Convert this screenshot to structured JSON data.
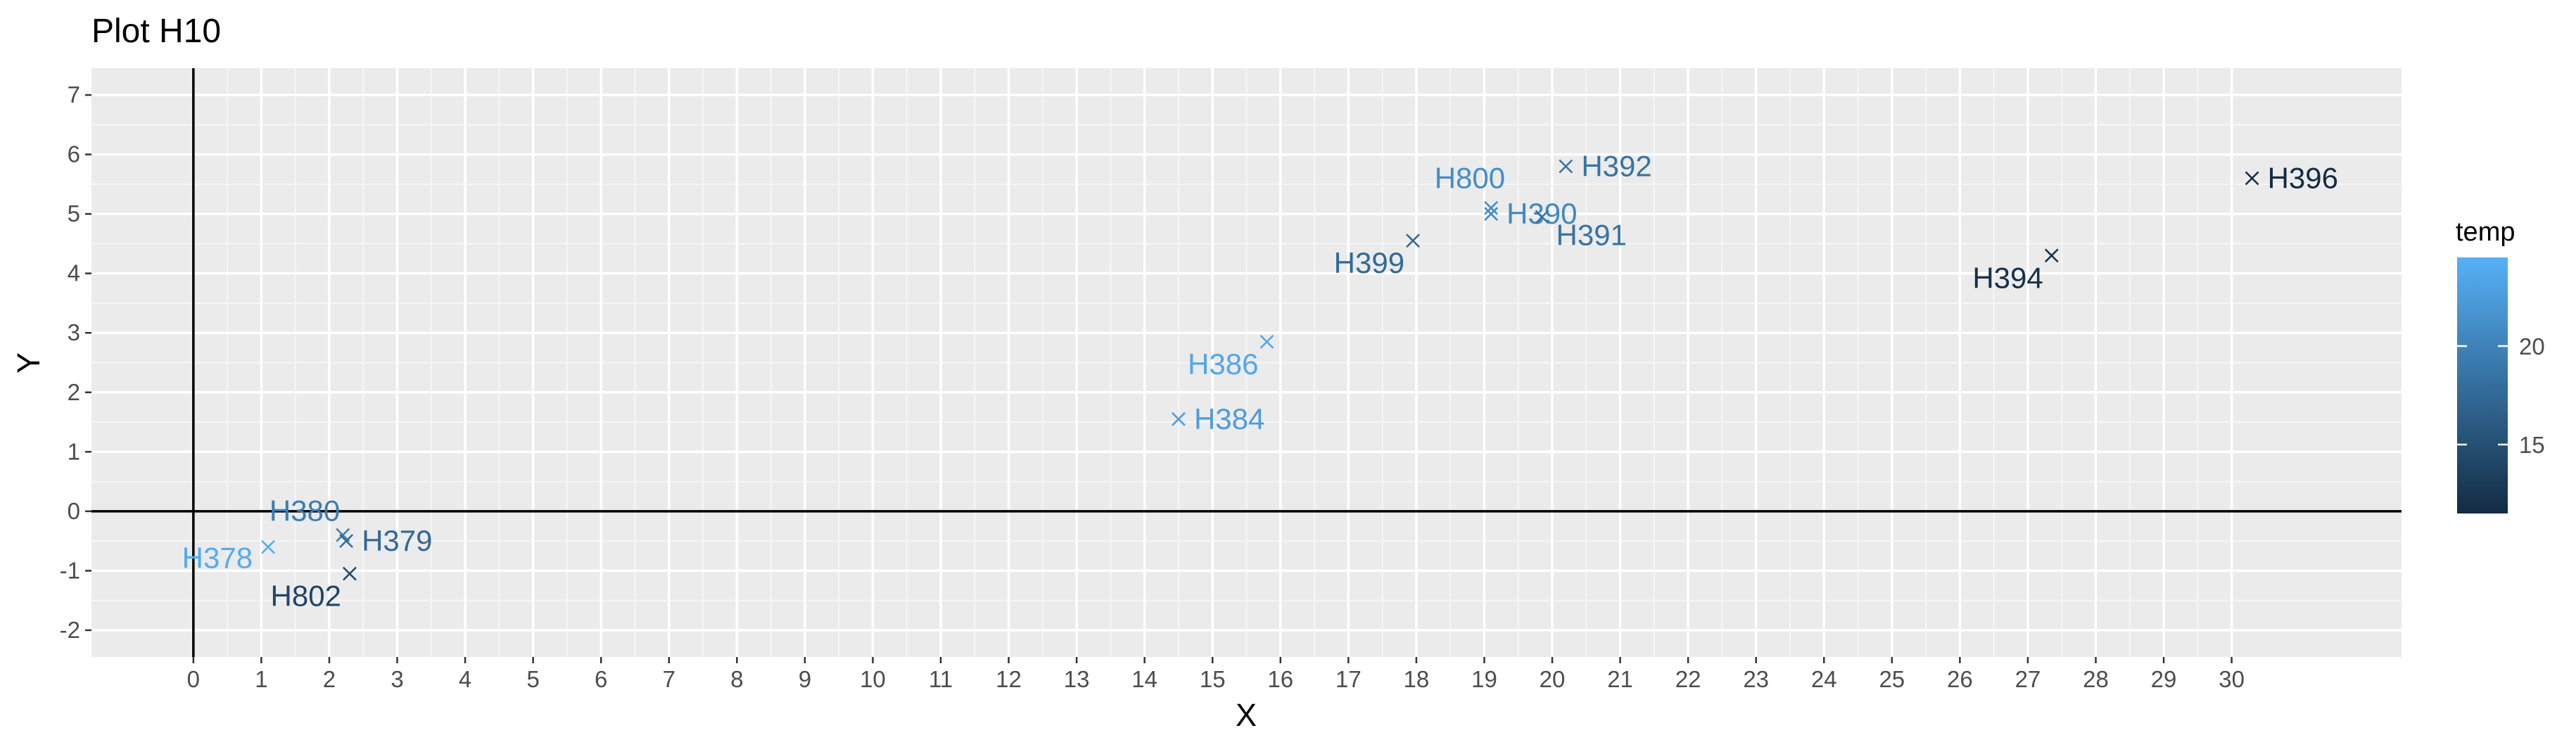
{
  "chart_data": {
    "type": "scatter",
    "title": "Plot H10",
    "xlabel": "X",
    "ylabel": "Y",
    "xlim": [
      -1.5,
      32.5
    ],
    "ylim": [
      -2.45,
      7.45
    ],
    "x_ticks": [
      0,
      1,
      2,
      3,
      4,
      5,
      6,
      7,
      8,
      9,
      10,
      11,
      12,
      13,
      14,
      15,
      16,
      17,
      18,
      19,
      20,
      21,
      22,
      23,
      24,
      25,
      26,
      27,
      28,
      29,
      30
    ],
    "y_ticks": [
      -2,
      -1,
      0,
      1,
      2,
      3,
      4,
      5,
      6,
      7
    ],
    "grid": true,
    "reference_lines": {
      "x": 0,
      "y": 0
    },
    "marker": "x",
    "color_scale": {
      "name": "temp",
      "low_color": "#132B43",
      "high_color": "#56B1F7",
      "domain": [
        11.5,
        24.5
      ],
      "breaks": [
        15,
        20
      ]
    },
    "legend_position": "right",
    "points": [
      {
        "label": "H378",
        "x": 1.1,
        "y": -0.6,
        "temp": 24.0
      },
      {
        "label": "H380",
        "x": 2.2,
        "y": -0.4,
        "temp": 19.5
      },
      {
        "label": "H379",
        "x": 2.25,
        "y": -0.5,
        "temp": 17.5
      },
      {
        "label": "H802",
        "x": 2.3,
        "y": -1.05,
        "temp": 14.0
      },
      {
        "label": "H384",
        "x": 14.5,
        "y": 1.55,
        "temp": 22.5
      },
      {
        "label": "H386",
        "x": 15.8,
        "y": 2.85,
        "temp": 23.5
      },
      {
        "label": "H399",
        "x": 17.95,
        "y": 4.55,
        "temp": 17.5
      },
      {
        "label": "H390",
        "x": 19.1,
        "y": 5.0,
        "temp": 20.5
      },
      {
        "label": "H800",
        "x": 19.1,
        "y": 5.1,
        "temp": 21.0
      },
      {
        "label": "H391",
        "x": 19.85,
        "y": 4.95,
        "temp": 18.5
      },
      {
        "label": "H392",
        "x": 20.2,
        "y": 5.8,
        "temp": 18.5
      },
      {
        "label": "H394",
        "x": 27.35,
        "y": 4.3,
        "temp": 12.0
      },
      {
        "label": "H396",
        "x": 30.3,
        "y": 5.6,
        "temp": 11.5
      }
    ]
  }
}
